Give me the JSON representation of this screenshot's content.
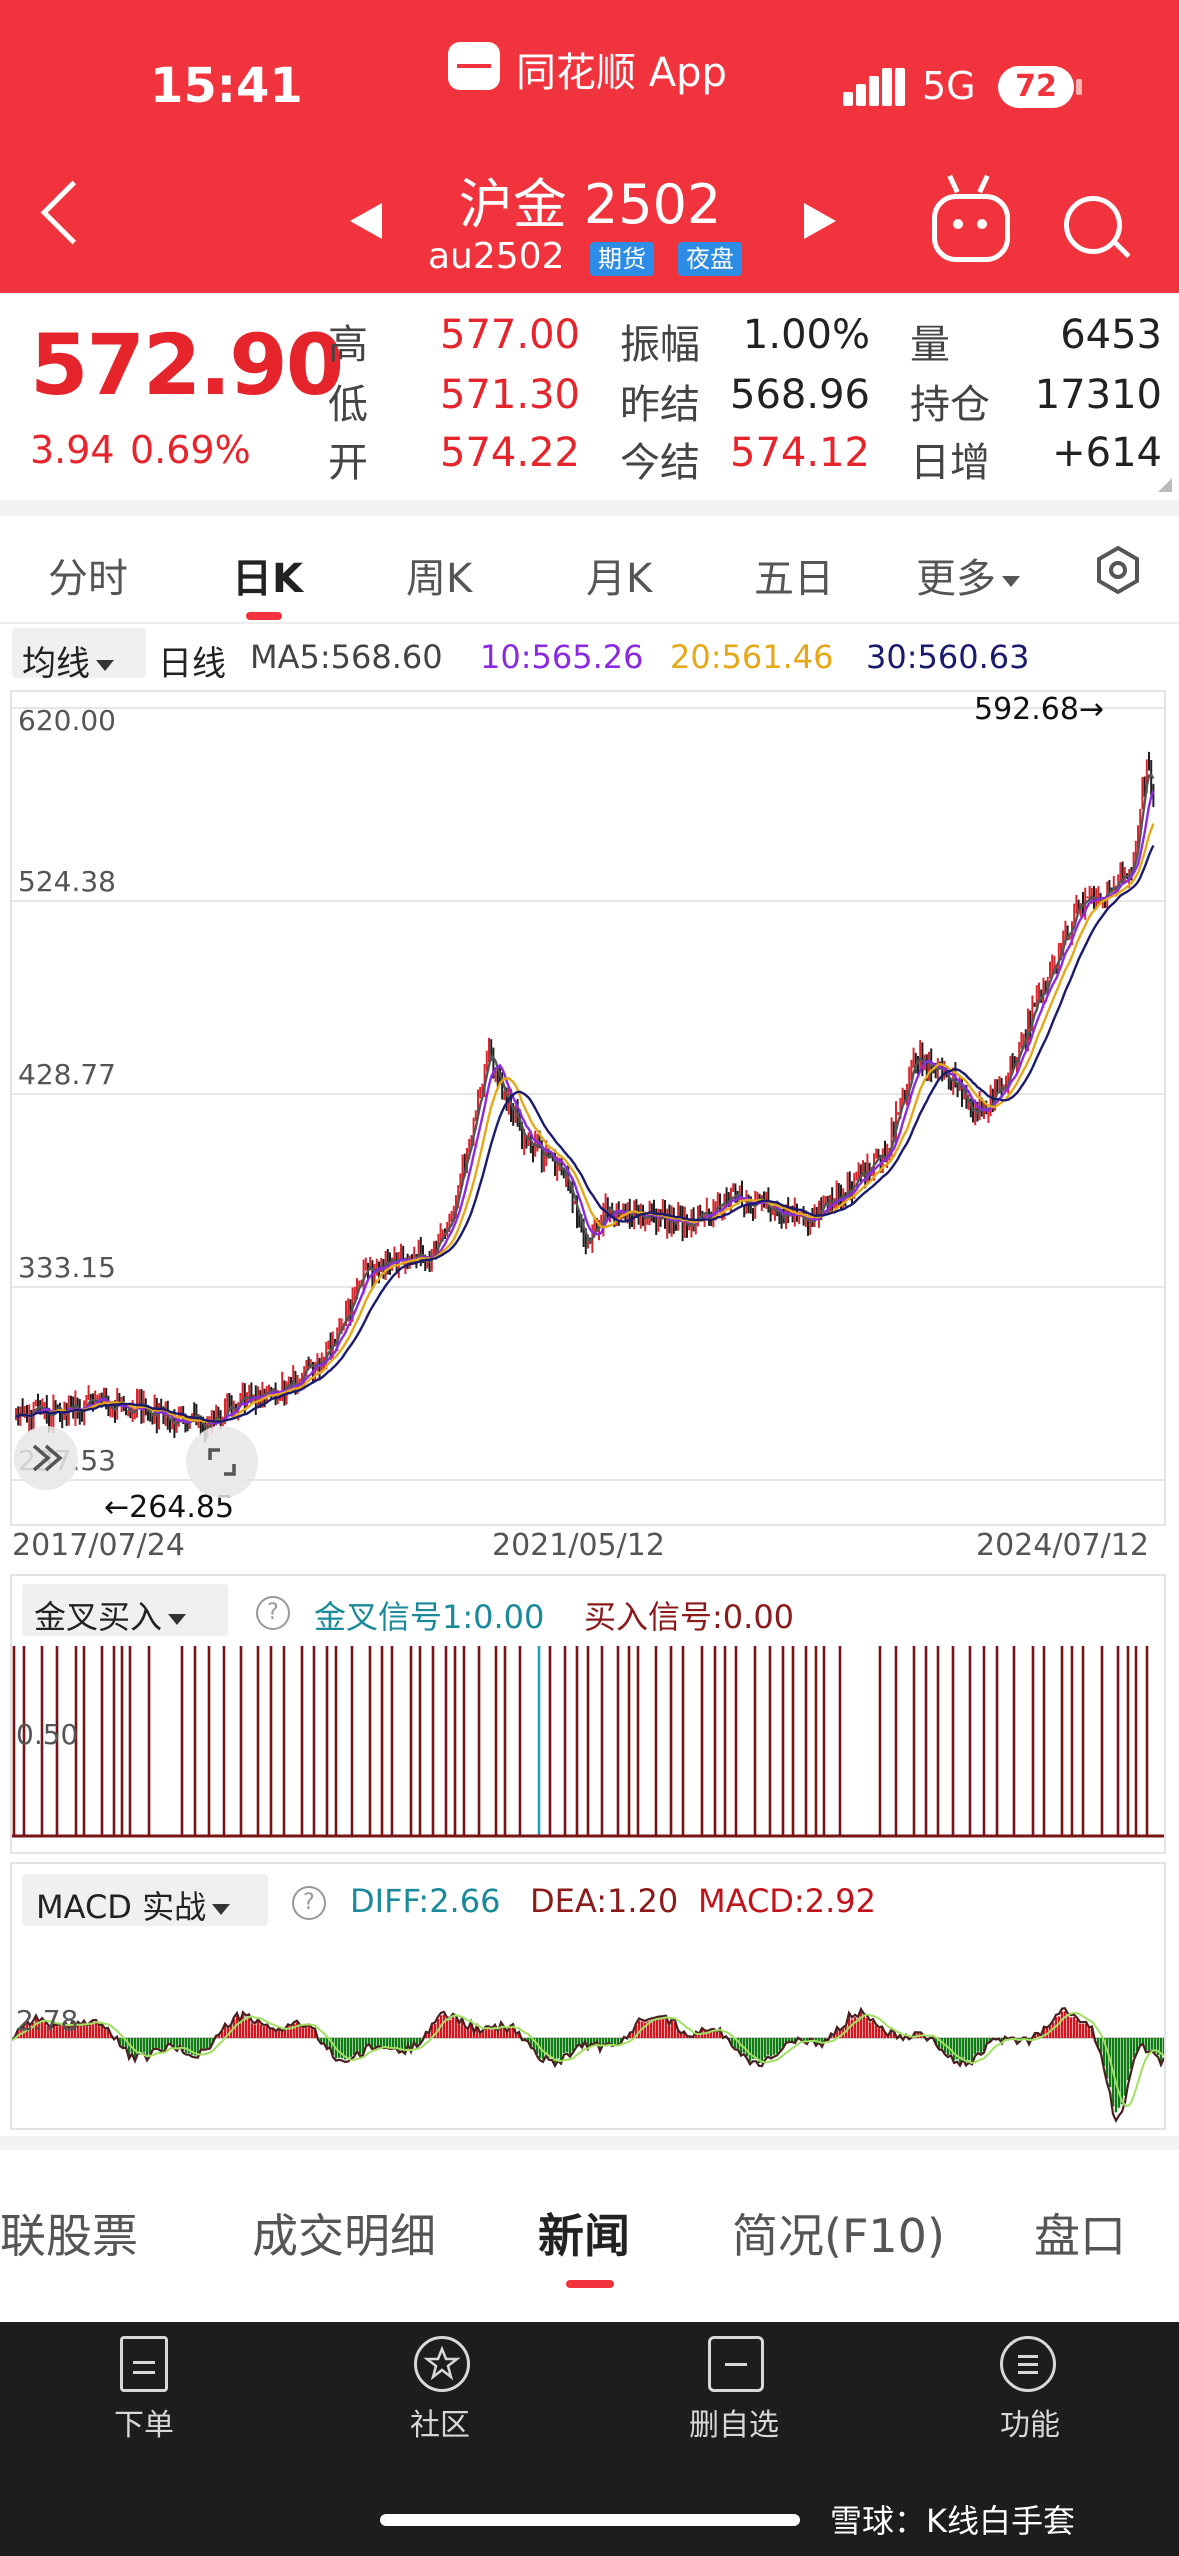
{
  "status": {
    "time": "15:41",
    "app_name": "同花顺 App",
    "network": "5G",
    "battery": "72"
  },
  "header": {
    "title": "沪金 2502",
    "code": "au2502",
    "tags": [
      "期货",
      "夜盘"
    ]
  },
  "quote": {
    "price": "572.90",
    "change": "3.94",
    "change_pct": "0.69%",
    "rows": [
      [
        {
          "label": "高",
          "value": "577.00"
        },
        {
          "label": "振幅",
          "value": "1.00%"
        },
        {
          "label": "量",
          "value": "6453"
        }
      ],
      [
        {
          "label": "低",
          "value": "571.30"
        },
        {
          "label": "昨结",
          "value": "568.96"
        },
        {
          "label": "持仓",
          "value": "17310"
        }
      ],
      [
        {
          "label": "开",
          "value": "574.22"
        },
        {
          "label": "今结",
          "value": "574.12"
        },
        {
          "label": "日增",
          "value": "+614"
        }
      ]
    ]
  },
  "period_tabs": [
    "分时",
    "日K",
    "周K",
    "月K",
    "五日",
    "更多"
  ],
  "active_period": "日K",
  "ma_bar": {
    "selector": "均线",
    "mode": "日线",
    "items": [
      {
        "text": "MA5:568.60",
        "color": "#444444"
      },
      {
        "text": "10:565.26",
        "color": "#8a2be2"
      },
      {
        "text": "20:561.46",
        "color": "#e6a817"
      },
      {
        "text": "30:560.63",
        "color": "#1a1a6e"
      }
    ]
  },
  "chart_data": [
    {
      "type": "candlestick",
      "y_ticks": [
        "620.00",
        "524.38",
        "428.77",
        "333.15",
        "237.53"
      ],
      "ylim": [
        237.53,
        620.0
      ],
      "x_ticks": [
        "2017/07/24",
        "2021/05/12",
        "2024/07/12"
      ],
      "xlim": [
        "2017/07/24",
        "2024/11/15"
      ],
      "max_label": "592.68→",
      "min_label": "←264.85",
      "legend": [
        "MA5:568.60",
        "10:565.26",
        "20:561.46",
        "30:560.63"
      ],
      "close_series": [
        [
          "2017/07/24",
          272
        ],
        [
          "2017/10/24",
          270
        ],
        [
          "2018/01/24",
          276
        ],
        [
          "2018/04/24",
          274
        ],
        [
          "2018/07/24",
          268
        ],
        [
          "2018/10/24",
          264.85
        ],
        [
          "2019/01/24",
          280
        ],
        [
          "2019/04/24",
          282
        ],
        [
          "2019/07/24",
          300
        ],
        [
          "2019/10/24",
          340
        ],
        [
          "2020/01/24",
          350
        ],
        [
          "2020/03/24",
          345
        ],
        [
          "2020/05/24",
          378
        ],
        [
          "2020/08/07",
          448
        ],
        [
          "2020/10/24",
          408
        ],
        [
          "2021/01/24",
          390
        ],
        [
          "2021/03/24",
          356
        ],
        [
          "2021/05/12",
          372
        ],
        [
          "2021/08/24",
          368
        ],
        [
          "2021/11/24",
          365
        ],
        [
          "2022/02/24",
          376
        ],
        [
          "2022/05/24",
          374
        ],
        [
          "2022/08/24",
          366
        ],
        [
          "2022/11/24",
          380
        ],
        [
          "2023/02/24",
          400
        ],
        [
          "2023/05/04",
          446
        ],
        [
          "2023/07/24",
          438
        ],
        [
          "2023/09/24",
          418
        ],
        [
          "2023/11/24",
          432
        ],
        [
          "2024/02/24",
          478
        ],
        [
          "2024/05/24",
          522
        ],
        [
          "2024/07/12",
          526
        ],
        [
          "2024/09/24",
          540
        ],
        [
          "2024/10/30",
          592.68
        ],
        [
          "2024/11/15",
          572.9
        ]
      ]
    },
    {
      "type": "bar",
      "title": "金叉买入",
      "y_ticks": [
        "0.50"
      ],
      "legend": [
        "金叉信号1:0.00",
        "买入信号:0.00"
      ]
    },
    {
      "type": "bar",
      "title": "MACD 实战",
      "y_ticks": [
        "2.78"
      ],
      "legend": [
        "DIFF:2.66",
        "DEA:1.20",
        "MACD:2.92"
      ]
    }
  ],
  "indicator1": {
    "selector": "金叉买入",
    "items": [
      {
        "text": "金叉信号1:0.00",
        "color": "#1a8a9a"
      },
      {
        "text": "买入信号:0.00",
        "color": "#8b1a1a"
      }
    ],
    "y_label": "0.50"
  },
  "indicator2": {
    "selector": "MACD 实战",
    "items": [
      {
        "text": "DIFF:2.66",
        "color": "#1a8a9a"
      },
      {
        "text": "DEA:1.20",
        "color": "#8b1a1a"
      },
      {
        "text": "MACD:2.92",
        "color": "#c0131b"
      }
    ],
    "y_label": "2.78"
  },
  "info_tabs": [
    "关联股票",
    "成交明细",
    "新闻",
    "简况(F10)",
    "盘口"
  ],
  "active_info_tab": "新闻",
  "bottom_nav": [
    "下单",
    "社区",
    "删自选",
    "功能"
  ],
  "watermark": "雪球：K线白手套"
}
